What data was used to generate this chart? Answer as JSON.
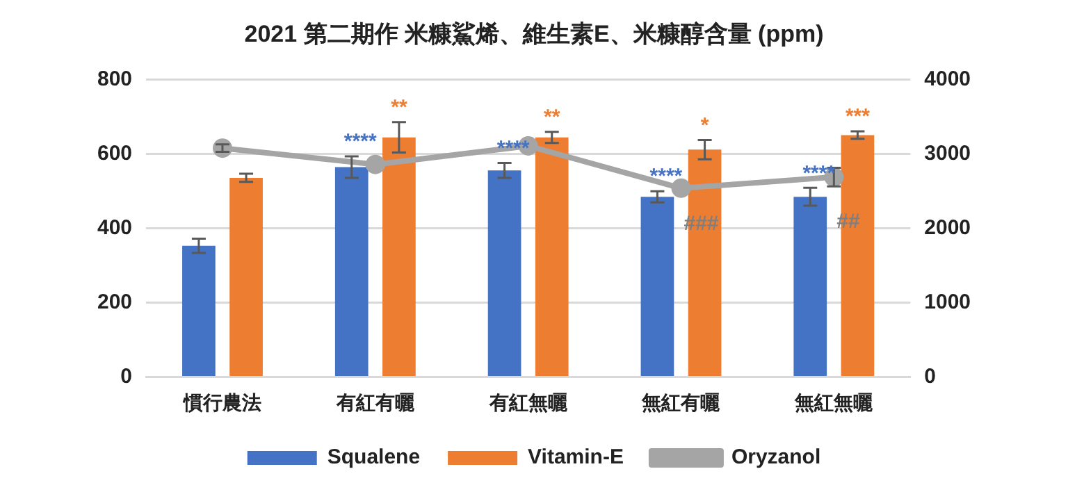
{
  "chart_data": {
    "type": "bar",
    "title": "2021 第二期作 米糠鯊烯、維生素E、米糠醇含量 (ppm)",
    "categories": [
      "慣行農法",
      "有紅有曬",
      "有紅無曬",
      "無紅有曬",
      "無紅無曬"
    ],
    "series": [
      {
        "name": "Squalene",
        "color": "#4472c4",
        "values": [
          353,
          565,
          556,
          485,
          485
        ],
        "errors": [
          19,
          29,
          20,
          15,
          24
        ],
        "value_labels": [
          null,
          "****",
          "****",
          "****",
          "****"
        ]
      },
      {
        "name": "Vitamin-E",
        "color": "#ed7d31",
        "values": [
          536,
          645,
          645,
          612,
          651
        ],
        "errors": [
          11,
          41,
          15,
          26,
          10
        ],
        "value_labels": [
          null,
          "**",
          "**",
          "*",
          "***"
        ]
      },
      {
        "name": "Oryzanol",
        "type": "line",
        "axis": "y2",
        "color": "#a5a5a5",
        "marker": "circle",
        "values": [
          3080,
          2860,
          3110,
          2540,
          2690
        ],
        "errors": [
          50,
          null,
          null,
          null,
          125
        ],
        "value_labels": [
          null,
          null,
          null,
          "###",
          "##"
        ]
      }
    ],
    "ylim": [
      0,
      800
    ],
    "yticks": [
      0,
      200,
      400,
      600,
      800
    ],
    "y2lim": [
      0,
      4000
    ],
    "y2ticks": [
      0,
      1000,
      2000,
      3000,
      4000
    ],
    "grid": "y",
    "legend": "bottom"
  }
}
